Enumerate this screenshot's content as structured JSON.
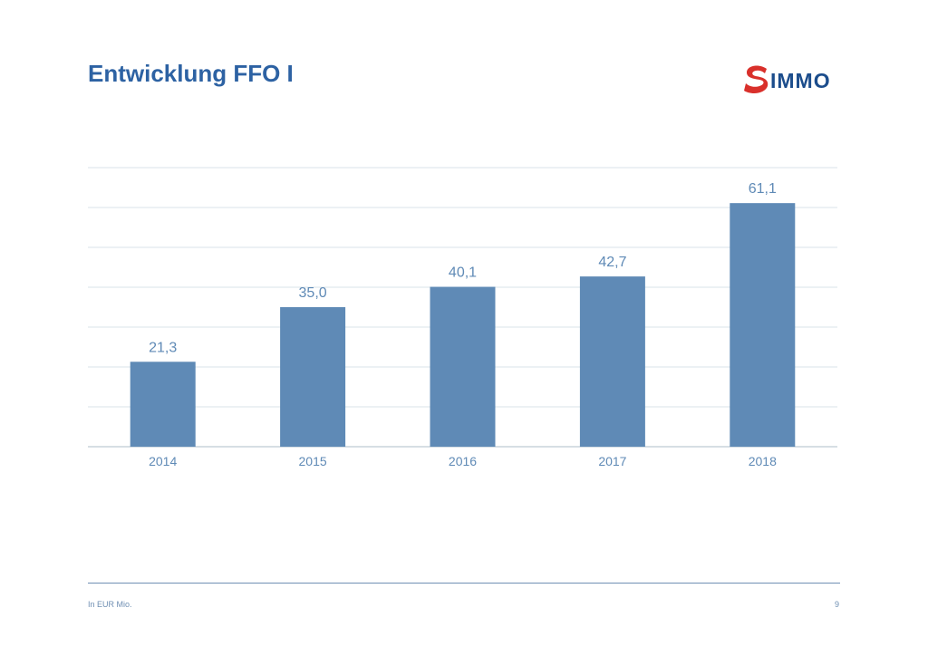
{
  "title": "Entwicklung FFO I",
  "logo": {
    "text": "IMMO",
    "icon": "s-immo-logo-icon",
    "brand_colors": {
      "red": "#d9302b",
      "blue": "#1c4d8c"
    }
  },
  "chart_data": {
    "type": "bar",
    "categories": [
      "2014",
      "2015",
      "2016",
      "2017",
      "2018"
    ],
    "values": [
      21.3,
      35.0,
      40.1,
      42.7,
      61.1
    ],
    "value_labels": [
      "21,3",
      "35,0",
      "40,1",
      "42,7",
      "61,1"
    ],
    "ylim": [
      0,
      70
    ],
    "grid": true,
    "bar_color": "#5f8ab6",
    "label_color": "#5f8ab6"
  },
  "footer": {
    "note": "In EUR Mio.",
    "page_number": "9"
  }
}
